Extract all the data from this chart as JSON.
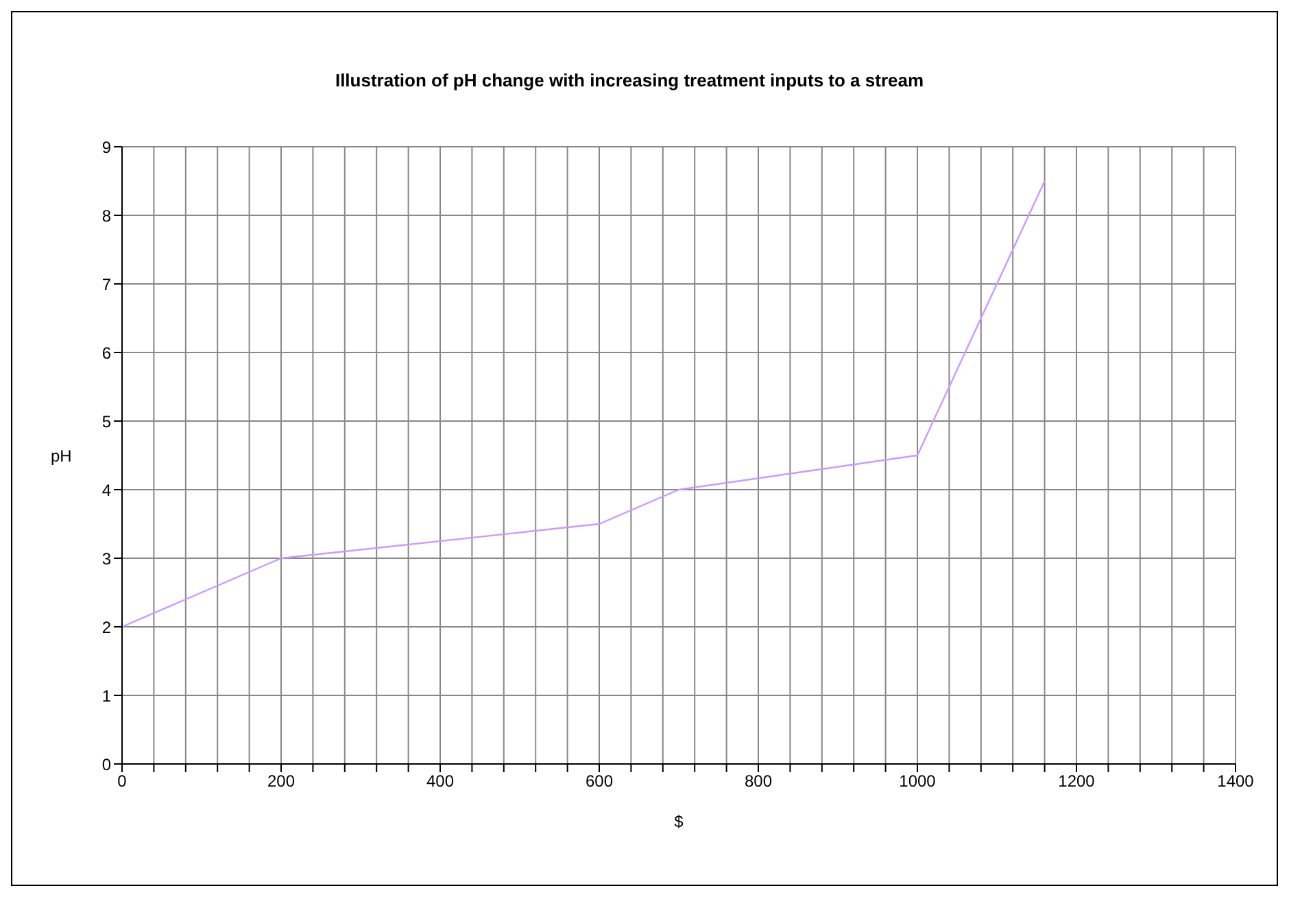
{
  "chart_data": {
    "type": "line",
    "title": "Illustration of pH change with increasing treatment inputs to a stream",
    "xlabel": "$",
    "ylabel": "pH",
    "x": [
      0,
      200,
      600,
      700,
      1000,
      1160
    ],
    "series": [
      {
        "color": "#cc99ff",
        "values": [
          2,
          3,
          3.5,
          4,
          4.5,
          8.5
        ]
      }
    ],
    "xlim": [
      0,
      1400
    ],
    "xticks": [
      0,
      {
        "value": 40,
        "label": null
      },
      {
        "value": 80,
        "label": null
      },
      {
        "value": 120,
        "label": null
      },
      {
        "value": 160,
        "label": null
      },
      200,
      {
        "value": 240,
        "label": null
      },
      {
        "value": 280,
        "label": null
      },
      {
        "value": 320,
        "label": null
      },
      {
        "value": 360,
        "label": null
      },
      400,
      {
        "value": 440,
        "label": null
      },
      {
        "value": 480,
        "label": null
      },
      {
        "value": 520,
        "label": null
      },
      {
        "value": 560,
        "label": null
      },
      600,
      {
        "value": 640,
        "label": null
      },
      {
        "value": 680,
        "label": null
      },
      {
        "value": 720,
        "label": null
      },
      {
        "value": 760,
        "label": null
      },
      800,
      {
        "value": 840,
        "label": null
      },
      {
        "value": 880,
        "label": null
      },
      {
        "value": 920,
        "label": null
      },
      {
        "value": 960,
        "label": null
      },
      1000,
      {
        "value": 1040,
        "label": null
      },
      {
        "value": 1080,
        "label": null
      },
      {
        "value": 1120,
        "label": null
      },
      {
        "value": 1160,
        "label": null
      },
      1200,
      {
        "value": 1240,
        "label": null
      },
      {
        "value": 1280,
        "label": null
      },
      {
        "value": 1320,
        "label": null
      },
      {
        "value": 1360,
        "label": null
      },
      1400
    ],
    "ylim": [
      0,
      9
    ],
    "yticks": [
      0,
      1,
      2,
      3,
      4,
      5,
      6,
      7,
      8,
      9
    ],
    "grid": true,
    "marker": "none",
    "line_style": "solid"
  }
}
